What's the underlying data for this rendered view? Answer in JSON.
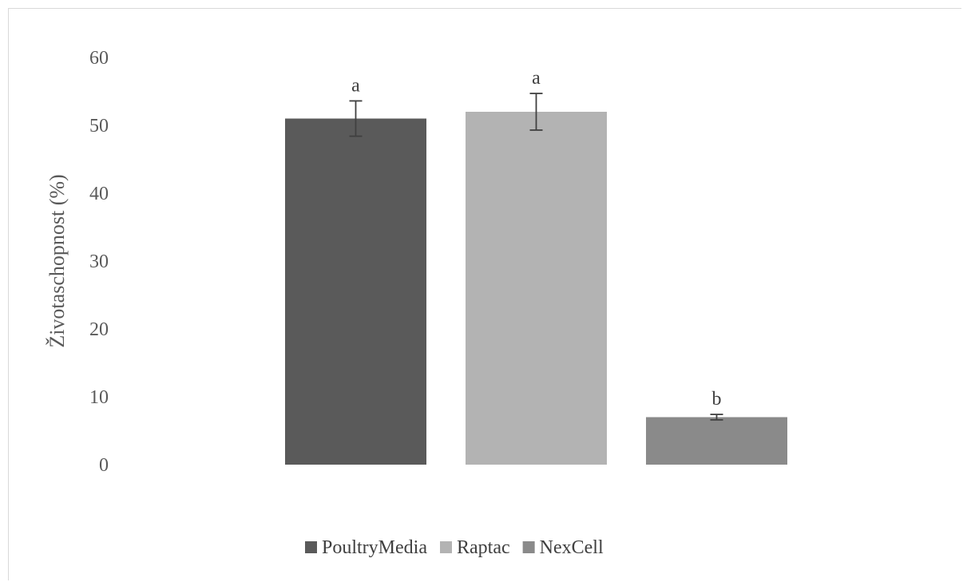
{
  "chart_data": {
    "type": "bar",
    "title": "",
    "xlabel": "",
    "ylabel": "Životaschopnost (%)",
    "ylim": [
      0,
      60
    ],
    "yticks": [
      0,
      10,
      20,
      30,
      40,
      50,
      60
    ],
    "grid": false,
    "legend_position": "bottom",
    "series": [
      {
        "name": "PoultryMedia",
        "value": 51,
        "error": 2.6,
        "significance": "a",
        "color": "#5a5a5a"
      },
      {
        "name": "Raptac",
        "value": 52,
        "error": 2.7,
        "significance": "a",
        "color": "#b3b3b3"
      },
      {
        "name": "NexCell",
        "value": 7,
        "error": 0.4,
        "significance": "b",
        "color": "#8a8a8a"
      }
    ]
  }
}
